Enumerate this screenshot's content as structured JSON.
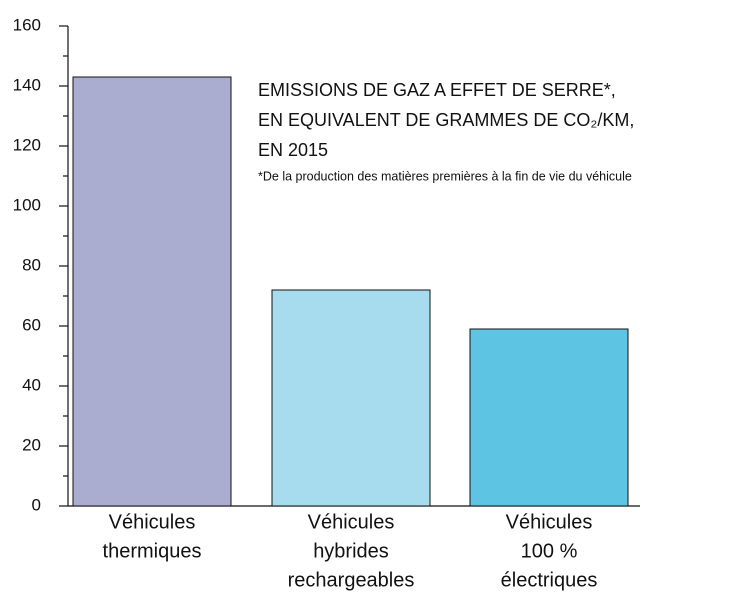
{
  "chart_data": {
    "type": "bar",
    "title": [
      "EMISSIONS DE GAZ A EFFET DE SERRE*,",
      "EN EQUIVALENT DE GRAMMES DE CO₂/KM,",
      "EN 2015"
    ],
    "subtitle": "*De la production des matières premières à la fin de vie du véhicule",
    "categories": [
      [
        "Véhicules",
        "thermiques"
      ],
      [
        "Véhicules",
        "hybrides",
        "rechargeables"
      ],
      [
        "Véhicules",
        "100 %",
        "électriques"
      ]
    ],
    "values": [
      143,
      72,
      59
    ],
    "colors": [
      "#abadd0",
      "#a6dced",
      "#5ec4e4"
    ],
    "ylim": [
      0,
      160
    ],
    "yticks": [
      0,
      20,
      40,
      60,
      80,
      100,
      120,
      140,
      160
    ],
    "yminor_ticks": [
      10,
      30,
      50,
      70,
      90,
      110,
      130,
      150
    ],
    "grid": false
  }
}
